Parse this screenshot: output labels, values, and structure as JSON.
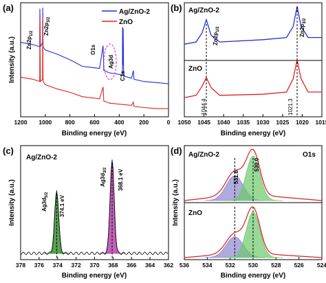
{
  "chart_data": [
    {
      "panel": "(a)",
      "type": "line",
      "xlabel": "Binding energy (eV)",
      "ylabel": "Intensity (a.u.)",
      "xlim": [
        1200,
        0
      ],
      "xticks": [
        "1200",
        "1000",
        "800",
        "600",
        "400",
        "200",
        "0"
      ],
      "legend_position": "top-right",
      "series": [
        {
          "name": "Ag/ZnO-2",
          "color": "#1f2fd6",
          "points": [
            [
              1200,
              0.66
            ],
            [
              1100,
              0.64
            ],
            [
              1045,
              0.62
            ],
            [
              1044,
              0.97
            ],
            [
              1040,
              0.62
            ],
            [
              1022,
              0.66
            ],
            [
              1021,
              0.98
            ],
            [
              1018,
              0.62
            ],
            [
              1000,
              0.59
            ],
            [
              900,
              0.55
            ],
            [
              800,
              0.5
            ],
            [
              700,
              0.44
            ],
            [
              560,
              0.42
            ],
            [
              531,
              0.63
            ],
            [
              525,
              0.4
            ],
            [
              480,
              0.38
            ],
            [
              374,
              0.36
            ],
            [
              373,
              0.8
            ],
            [
              370,
              0.45
            ],
            [
              368,
              0.79
            ],
            [
              364,
              0.35
            ],
            [
              300,
              0.33
            ],
            [
              285,
              0.4
            ],
            [
              280,
              0.32
            ],
            [
              200,
              0.3
            ],
            [
              100,
              0.29
            ],
            [
              10,
              0.28
            ],
            [
              0,
              0.28
            ]
          ]
        },
        {
          "name": "ZnO",
          "color": "#e02020",
          "points": [
            [
              1200,
              0.34
            ],
            [
              1100,
              0.32
            ],
            [
              1045,
              0.3
            ],
            [
              1044,
              0.88
            ],
            [
              1040,
              0.3
            ],
            [
              1022,
              0.32
            ],
            [
              1021,
              0.9
            ],
            [
              1018,
              0.3
            ],
            [
              1000,
              0.27
            ],
            [
              900,
              0.23
            ],
            [
              800,
              0.2
            ],
            [
              700,
              0.16
            ],
            [
              560,
              0.14
            ],
            [
              531,
              0.25
            ],
            [
              525,
              0.12
            ],
            [
              480,
              0.1
            ],
            [
              300,
              0.08
            ],
            [
              285,
              0.11
            ],
            [
              280,
              0.07
            ],
            [
              200,
              0.06
            ],
            [
              100,
              0.05
            ],
            [
              10,
              0.05
            ],
            [
              0,
              0.05
            ]
          ]
        }
      ],
      "annotations": [
        "Zn2p 1/2",
        "Zn2p 3/2",
        "O1s",
        "Ag3d",
        "C1s"
      ]
    },
    {
      "panel": "(b)",
      "type": "line",
      "xlabel": "Binding energy (eV)",
      "xlim": [
        1050,
        1015
      ],
      "xticks": [
        "1050",
        "1045",
        "1040",
        "1035",
        "1030",
        "1025",
        "1020",
        "1015"
      ],
      "peaks": [
        1044.4,
        1021.3
      ],
      "series": [
        {
          "name": "Ag/ZnO-2",
          "color": "#1f2fd6",
          "points": [
            [
              1050,
              0.64
            ],
            [
              1047,
              0.66
            ],
            [
              1045.5,
              0.74
            ],
            [
              1044.4,
              0.86
            ],
            [
              1043.2,
              0.72
            ],
            [
              1041,
              0.66
            ],
            [
              1030,
              0.68
            ],
            [
              1024,
              0.7
            ],
            [
              1022.3,
              0.8
            ],
            [
              1021.3,
              0.98
            ],
            [
              1020.3,
              0.8
            ],
            [
              1018.5,
              0.7
            ],
            [
              1015,
              0.7
            ]
          ]
        },
        {
          "name": "ZnO",
          "color": "#e02020",
          "points": [
            [
              1050,
              0.16
            ],
            [
              1047,
              0.18
            ],
            [
              1045.5,
              0.26
            ],
            [
              1044.4,
              0.34
            ],
            [
              1043.2,
              0.25
            ],
            [
              1041,
              0.18
            ],
            [
              1030,
              0.19
            ],
            [
              1024,
              0.21
            ],
            [
              1022.3,
              0.33
            ],
            [
              1021.3,
              0.5
            ],
            [
              1020.3,
              0.33
            ],
            [
              1018.5,
              0.21
            ],
            [
              1015,
              0.21
            ]
          ]
        }
      ],
      "labels": [
        "Ag/ZnO-2",
        "ZnO",
        "Zn2p 1/2",
        "Zn2p 3/2",
        "1044.4",
        "1021.3"
      ]
    },
    {
      "panel": "(c)",
      "type": "line",
      "xlabel": "Binding energy (eV)",
      "ylabel": "Intensity (a.u.)",
      "xlim": [
        378,
        362
      ],
      "xticks": [
        "378",
        "376",
        "374",
        "372",
        "370",
        "368",
        "366",
        "364",
        "362"
      ],
      "sample": "Ag/ZnO-2",
      "peaks": [
        {
          "name": "Ag3d 5/2",
          "position": 374.1,
          "label": "374.1 eV",
          "color": "#2f8a2a",
          "height": 0.56
        },
        {
          "name": "Ag3d 3/2",
          "position": 368.1,
          "label": "368.1 eV",
          "color": "#b03aa6",
          "height": 0.84
        }
      ]
    },
    {
      "panel": "(d)",
      "type": "line",
      "xlabel": "Binding energy (eV)",
      "ylabel": "Intensity (a.u.)",
      "xlim": [
        536,
        524
      ],
      "xticks": [
        "536",
        "534",
        "532",
        "530",
        "528",
        "526",
        "524"
      ],
      "title": "O1s",
      "subplots": [
        {
          "name": "Ag/ZnO-2",
          "components": [
            {
              "position": 531.6,
              "label": "531.6",
              "height": 0.5,
              "color": "#8f86cf"
            },
            {
              "position": 530.0,
              "label": "530.0",
              "height": 0.9,
              "color": "#6cc96c"
            }
          ]
        },
        {
          "name": "ZnO",
          "components": [
            {
              "position": 531.6,
              "height": 0.42,
              "color": "#8f86cf"
            },
            {
              "position": 530.0,
              "height": 0.92,
              "color": "#6cc96c"
            }
          ]
        }
      ]
    }
  ],
  "panel_labels": {
    "a": "(a)",
    "b": "(b)",
    "c": "(c)",
    "d": "(d)"
  },
  "legend": {
    "ag": "Ag/ZnO-2",
    "zno": "ZnO"
  },
  "a_labels": {
    "zn12_main": "Zn2p",
    "zn12_sub": "1/2",
    "zn32_main": "Zn2p",
    "zn32_sub": "3/2",
    "o1s": "O1s",
    "ag3d": "Ag3d",
    "c1s": "C1s"
  },
  "b_labels": {
    "ag": "Ag/ZnO-2",
    "zno": "ZnO",
    "zn12_main": "Zn2p",
    "zn12_sub": "1/2",
    "zn32_main": "Zn2p",
    "zn32_sub": "3/2",
    "v1": "1044.4",
    "v2": "1021.3"
  },
  "c_labels": {
    "sample": "Ag/ZnO-2",
    "p1_main": "Ag3d",
    "p1_sub": "5/2",
    "p1_val": "374.1 eV",
    "p2_main": "Ag3d",
    "p2_sub": "3/2",
    "p2_val": "368.1 eV"
  },
  "d_labels": {
    "ag": "Ag/ZnO-2",
    "zno": "ZnO",
    "o1s": "O1s",
    "v1": "531.6",
    "v2": "530.0"
  },
  "axis_labels": {
    "xlabel": "Binding energy (eV)",
    "ylabel": "Intensity (a.u.)"
  }
}
